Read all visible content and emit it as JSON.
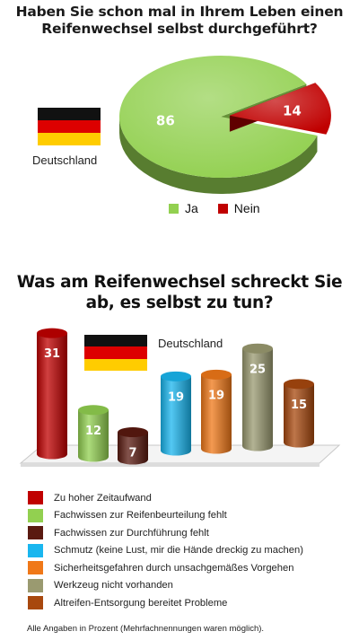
{
  "charts": {
    "pie": {
      "title": "Haben Sie schon mal in Ihrem Leben einen Reifenwechsel selbst durchgeführt?",
      "country": "Deutschland"
    },
    "bar": {
      "title": "Was am Reifenwechsel schreckt Sie ab, es selbst zu tun?",
      "country": "Deutschland"
    }
  },
  "footnote": "Alle Angaben in Prozent (Mehrfachnennungen waren möglich).",
  "chart_data": [
    {
      "type": "pie",
      "title": "Haben Sie schon mal in Ihrem Leben einen Reifenwechsel selbst durchgeführt?",
      "categories": [
        "Ja",
        "Nein"
      ],
      "values": [
        86,
        14
      ],
      "colors": [
        "#92d050",
        "#c00000"
      ],
      "legend": "bottom"
    },
    {
      "type": "bar",
      "title": "Was am Reifenwechsel schreckt Sie ab, es selbst zu tun?",
      "categories": [
        "Zu hoher Zeitaufwand",
        "Fachwissen zur Reifenbeurteilung fehlt",
        "Fachwissen zur Durchführung fehlt",
        "Schmutz (keine Lust, mir die Hände dreckig zu machen)",
        "Sicherheitsgefahren durch unsachgemäßes Vorgehen",
        "Werkzeug nicht vorhanden",
        "Altreifen-Entsorgung bereitet Probleme"
      ],
      "values": [
        31,
        12,
        7,
        19,
        19,
        25,
        15
      ],
      "colors": [
        "#c00000",
        "#92d050",
        "#5a1a10",
        "#19b6ef",
        "#f07818",
        "#9a9a70",
        "#a8480e"
      ],
      "legend": "bottom",
      "ylim": [
        0,
        31
      ]
    }
  ]
}
